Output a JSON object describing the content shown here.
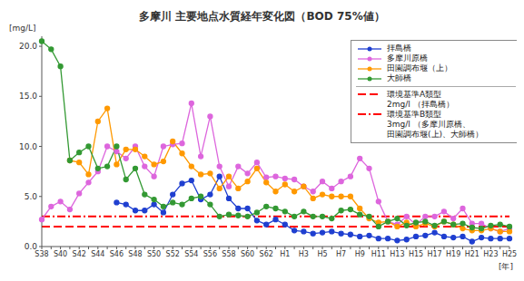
{
  "chart_data": {
    "type": "line",
    "title": "多摩川 主要地点水質経年変化図（BOD 75%値）",
    "y_label": "[mg/L]",
    "x_label": "[年]",
    "categories": [
      "S38",
      null,
      "S40",
      null,
      "S42",
      null,
      "S44",
      null,
      "S46",
      null,
      "S48",
      null,
      "S50",
      null,
      "S52",
      null,
      "S54",
      null,
      "S56",
      null,
      "S58",
      null,
      "S60",
      null,
      "S62",
      null,
      "H1",
      null,
      "H3",
      null,
      "H5",
      null,
      "H7",
      null,
      "H9",
      null,
      "H11",
      null,
      "H13",
      null,
      "H15",
      null,
      "H17",
      null,
      "H19",
      null,
      "H21",
      null,
      "H23",
      null,
      "H25"
    ],
    "series": [
      {
        "name": "拝島橋",
        "color": "#1f3fd0",
        "marker": "circle",
        "values": [
          null,
          null,
          null,
          null,
          null,
          null,
          null,
          null,
          4.4,
          4.2,
          3.6,
          3.6,
          4.2,
          3.4,
          5.2,
          6.3,
          6.6,
          4.7,
          5.2,
          7.0,
          4.8,
          3.8,
          3.8,
          2.6,
          2.2,
          2.7,
          2.2,
          1.6,
          1.5,
          1.3,
          1.4,
          1.5,
          1.3,
          1.2,
          1.0,
          1.1,
          0.8,
          0.8,
          0.6,
          0.7,
          1.0,
          1.1,
          1.4,
          1.0,
          0.9,
          1.0,
          0.5,
          0.9,
          0.8,
          0.8,
          0.8
        ]
      },
      {
        "name": "多摩川原橋",
        "color": "#dd66dd",
        "marker": "circle",
        "values": [
          2.7,
          4.0,
          4.5,
          3.7,
          5.3,
          6.4,
          7.5,
          10.0,
          9.5,
          8.8,
          10.0,
          8.0,
          7.0,
          10.0,
          10.2,
          10.3,
          14.3,
          9.0,
          13.0,
          8.0,
          6.0,
          8.0,
          7.3,
          8.4,
          6.9,
          7.0,
          6.8,
          6.7,
          6.0,
          5.5,
          6.5,
          5.8,
          6.5,
          7.0,
          8.8,
          7.8,
          4.5,
          2.5,
          2.2,
          3.0,
          2.2,
          3.0,
          3.0,
          3.5,
          2.8,
          3.8,
          2.3,
          2.3,
          1.8,
          1.5,
          1.8
        ]
      },
      {
        "name": "田園調布堰（上）",
        "color": "#ff9900",
        "marker": "circle",
        "values": [
          null,
          null,
          null,
          8.6,
          8.4,
          7.2,
          12.5,
          13.8,
          8.2,
          9.7,
          9.7,
          9.0,
          8.2,
          8.5,
          10.5,
          9.3,
          8.0,
          7.2,
          7.3,
          5.8,
          7.0,
          5.8,
          6.5,
          7.8,
          6.4,
          5.5,
          6.2,
          5.5,
          6.0,
          4.8,
          5.2,
          5.0,
          5.0,
          5.0,
          3.8,
          2.8,
          2.4,
          2.5,
          2.0,
          2.4,
          2.0,
          2.3,
          2.0,
          2.5,
          2.2,
          1.8,
          1.6,
          1.6,
          1.8,
          1.5,
          1.5
        ]
      },
      {
        "name": "大師橋",
        "color": "#339933",
        "marker": "circle",
        "values": [
          20.5,
          19.7,
          18.0,
          8.6,
          9.4,
          10.0,
          7.8,
          8.0,
          10.0,
          6.7,
          7.8,
          5.2,
          4.7,
          4.0,
          4.4,
          4.2,
          4.8,
          5.0,
          4.2,
          3.0,
          3.2,
          3.1,
          3.0,
          3.4,
          4.0,
          3.8,
          3.5,
          3.0,
          3.5,
          3.0,
          3.0,
          2.8,
          3.6,
          3.7,
          3.2,
          3.0,
          2.0,
          2.5,
          2.8,
          2.1,
          2.4,
          2.5,
          2.1,
          2.5,
          2.2,
          2.3,
          1.9,
          1.8,
          2.1,
          2.2,
          2.0
        ]
      }
    ],
    "reference_lines": [
      {
        "value": 2,
        "color": "#ff0000",
        "line_style": "dashed",
        "label": [
          "環境基準A類型",
          "2mg/l （拝島橋）"
        ]
      },
      {
        "value": 3,
        "color": "#ff0000",
        "line_style": "dashdot",
        "label": [
          "環境基準B類型",
          "3mg/l （多摩川原橋、",
          "田園調布堰(上)、大師橋）"
        ]
      }
    ],
    "ylim": [
      0,
      21
    ],
    "yticks": [
      {
        "value": 0,
        "label": "0.0"
      },
      {
        "value": 5,
        "label": "5.0"
      },
      {
        "value": 10,
        "label": "10.0"
      },
      {
        "value": 15,
        "label": "15.0"
      },
      {
        "value": 20,
        "label": "20.0"
      }
    ],
    "grid": false,
    "legend": "upper right"
  }
}
